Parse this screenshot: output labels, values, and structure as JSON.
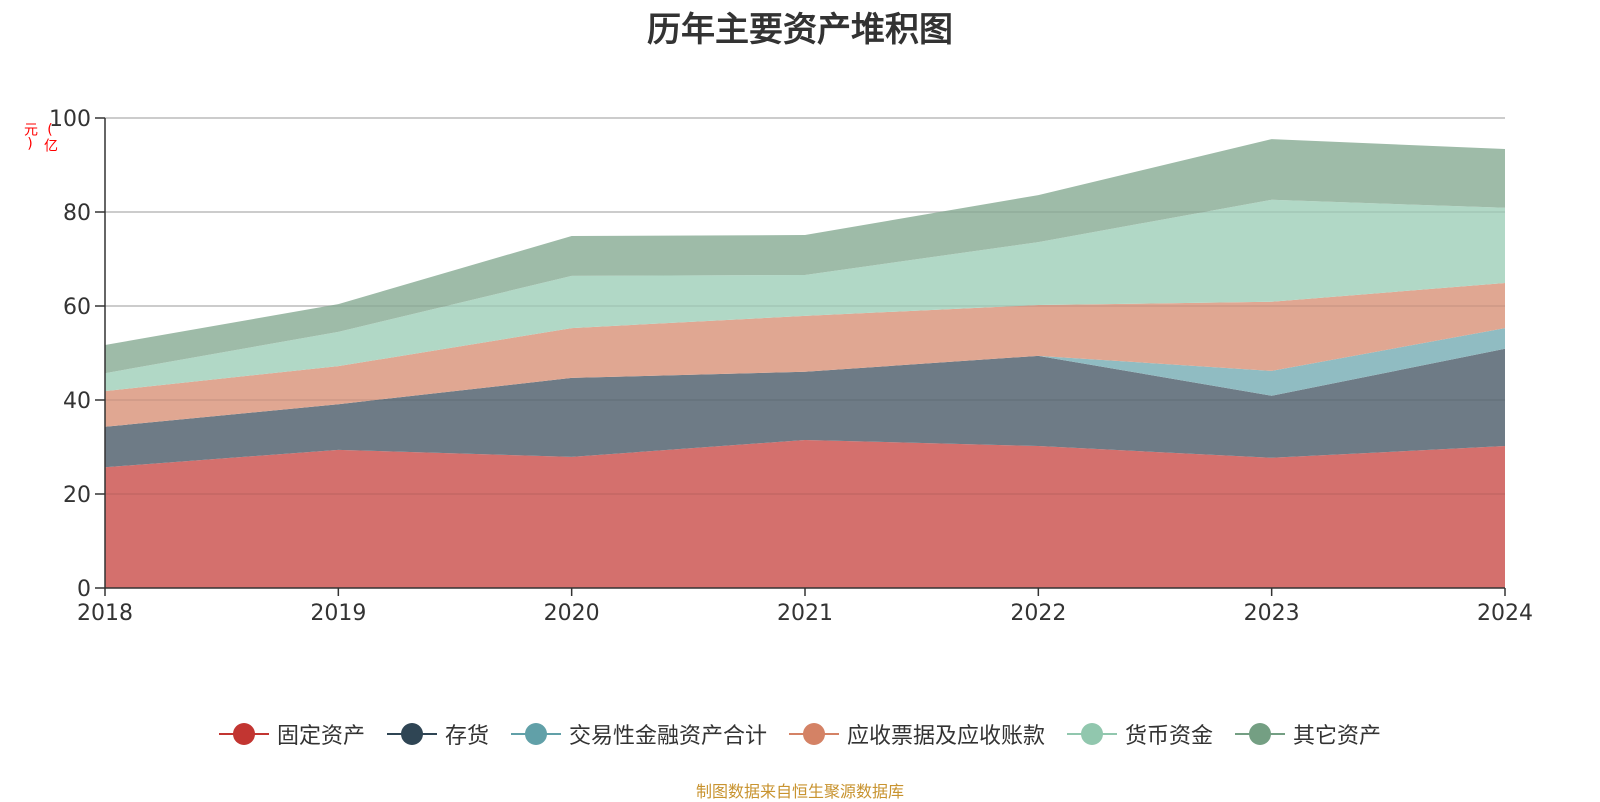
{
  "chart_data": {
    "type": "area",
    "stacked": true,
    "title": "历年主要资产堆积图",
    "ylabel": "(亿元)",
    "xlabel": "",
    "categories": [
      "2018",
      "2019",
      "2020",
      "2021",
      "2022",
      "2023",
      "2024"
    ],
    "ylim": [
      0,
      100
    ],
    "yticks": [
      0,
      20,
      40,
      60,
      80,
      100
    ],
    "grid": true,
    "legend_position": "bottom",
    "series": [
      {
        "name": "固定资产",
        "color": "#c23531",
        "fill": "#d4706d",
        "values": [
          25.7,
          29.4,
          27.9,
          31.5,
          30.2,
          27.7,
          30.2
        ]
      },
      {
        "name": "存货",
        "color": "#2f4554",
        "fill": "#6e7b86",
        "values": [
          8.6,
          9.7,
          16.8,
          14.5,
          19.2,
          13.2,
          20.7
        ]
      },
      {
        "name": "交易性金融资产合计",
        "color": "#61a0a8",
        "fill": "#90bcc2",
        "values": [
          0,
          0,
          0,
          0,
          0,
          5.3,
          4.4
        ]
      },
      {
        "name": "应收票据及应收账款",
        "color": "#d48265",
        "fill": "#e0a792",
        "values": [
          7.6,
          8.1,
          10.6,
          11.9,
          10.8,
          14.7,
          9.6
        ]
      },
      {
        "name": "货币资金",
        "color": "#91c7ae",
        "fill": "#b1d8c6",
        "values": [
          3.8,
          7.3,
          11.1,
          8.7,
          13.4,
          21.7,
          16.0
        ]
      },
      {
        "name": "其它资产",
        "color": "#749f83",
        "fill": "#9ebba8",
        "values": [
          6.0,
          5.9,
          8.5,
          8.5,
          10.0,
          12.9,
          12.5
        ]
      }
    ],
    "source_note": "制图数据来自恒生聚源数据库"
  }
}
